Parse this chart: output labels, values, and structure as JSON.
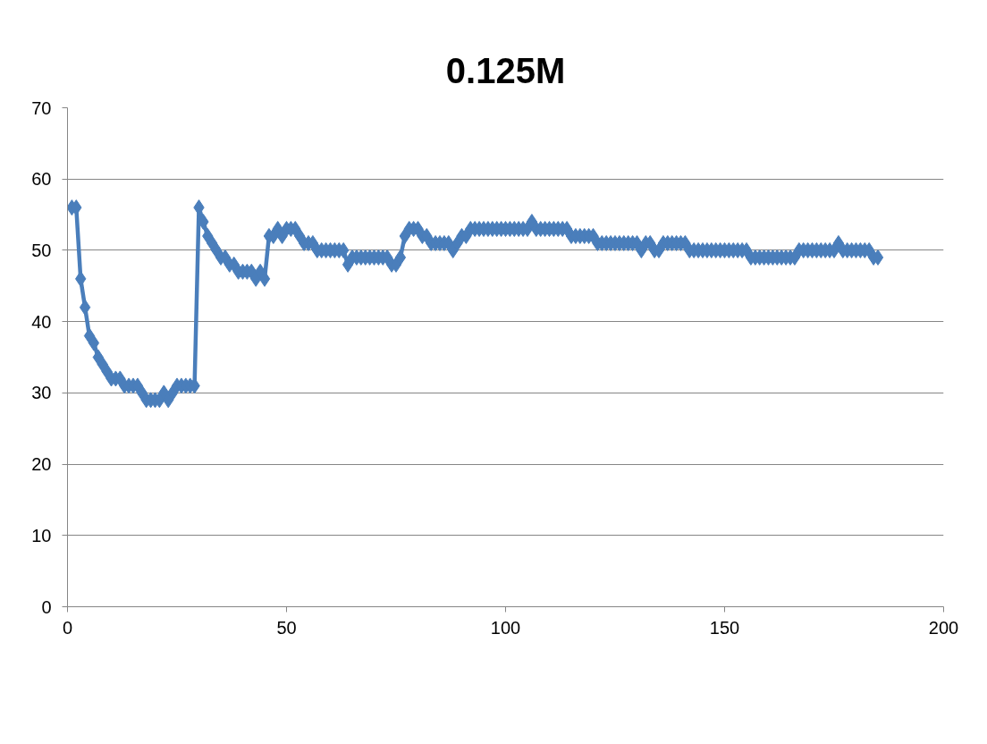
{
  "chart_data": {
    "type": "line",
    "title": "0.125M",
    "x": [
      1,
      2,
      3,
      4,
      5,
      6,
      7,
      8,
      9,
      10,
      11,
      12,
      13,
      14,
      15,
      16,
      17,
      18,
      19,
      20,
      21,
      22,
      23,
      24,
      25,
      26,
      27,
      28,
      29,
      30,
      31,
      32,
      33,
      34,
      35,
      36,
      37,
      38,
      39,
      40,
      41,
      42,
      43,
      44,
      45,
      46,
      47,
      48,
      49,
      50,
      51,
      52,
      53,
      54,
      55,
      56,
      57,
      58,
      59,
      60,
      61,
      62,
      63,
      64,
      65,
      66,
      67,
      68,
      69,
      70,
      71,
      72,
      73,
      74,
      75,
      76,
      77,
      78,
      79,
      80,
      81,
      82,
      83,
      84,
      85,
      86,
      87,
      88,
      89,
      90,
      91,
      92,
      93,
      94,
      95,
      96,
      97,
      98,
      99,
      100,
      101,
      102,
      103,
      104,
      105,
      106,
      107,
      108,
      109,
      110,
      111,
      112,
      113,
      114,
      115,
      116,
      117,
      118,
      119,
      120,
      121,
      122,
      123,
      124,
      125,
      126,
      127,
      128,
      129,
      130,
      131,
      132,
      133,
      134,
      135,
      136,
      137,
      138,
      139,
      140,
      141,
      142,
      143,
      144,
      145,
      146,
      147,
      148,
      149,
      150,
      151,
      152,
      153,
      154,
      155,
      156,
      157,
      158,
      159,
      160,
      161,
      162,
      163,
      164,
      165,
      166,
      167,
      168,
      169,
      170,
      171,
      172,
      173,
      174,
      175,
      176,
      177,
      178,
      179,
      180,
      181,
      182,
      183,
      184,
      185
    ],
    "series": [
      {
        "color": "#4a7ebb",
        "values": [
          56,
          56,
          46,
          42,
          38,
          37,
          35,
          34,
          33,
          32,
          32,
          32,
          31,
          31,
          31,
          31,
          30,
          29,
          29,
          29,
          29,
          30,
          29,
          30,
          31,
          31,
          31,
          31,
          31,
          56,
          54,
          52,
          51,
          50,
          49,
          49,
          48,
          48,
          47,
          47,
          47,
          47,
          46,
          47,
          46,
          52,
          52,
          53,
          52,
          53,
          53,
          53,
          52,
          51,
          51,
          51,
          50,
          50,
          50,
          50,
          50,
          50,
          50,
          48,
          49,
          49,
          49,
          49,
          49,
          49,
          49,
          49,
          49,
          48,
          48,
          49,
          52,
          53,
          53,
          53,
          52,
          52,
          51,
          51,
          51,
          51,
          51,
          50,
          51,
          52,
          52,
          53,
          53,
          53,
          53,
          53,
          53,
          53,
          53,
          53,
          53,
          53,
          53,
          53,
          53,
          54,
          53,
          53,
          53,
          53,
          53,
          53,
          53,
          53,
          52,
          52,
          52,
          52,
          52,
          52,
          51,
          51,
          51,
          51,
          51,
          51,
          51,
          51,
          51,
          51,
          50,
          51,
          51,
          50,
          50,
          51,
          51,
          51,
          51,
          51,
          51,
          50,
          50,
          50,
          50,
          50,
          50,
          50,
          50,
          50,
          50,
          50,
          50,
          50,
          50,
          49,
          49,
          49,
          49,
          49,
          49,
          49,
          49,
          49,
          49,
          49,
          50,
          50,
          50,
          50,
          50,
          50,
          50,
          50,
          50,
          51,
          50,
          50,
          50,
          50,
          50,
          50,
          50,
          49,
          49
        ]
      }
    ],
    "xlim": [
      0,
      200
    ],
    "xticks": [
      0,
      50,
      100,
      150,
      200
    ],
    "ylim": [
      0,
      70
    ],
    "yticks": [
      0,
      10,
      20,
      30,
      40,
      50,
      60,
      70
    ],
    "grid": "y",
    "marker": "diamond",
    "line_style": "solid"
  }
}
